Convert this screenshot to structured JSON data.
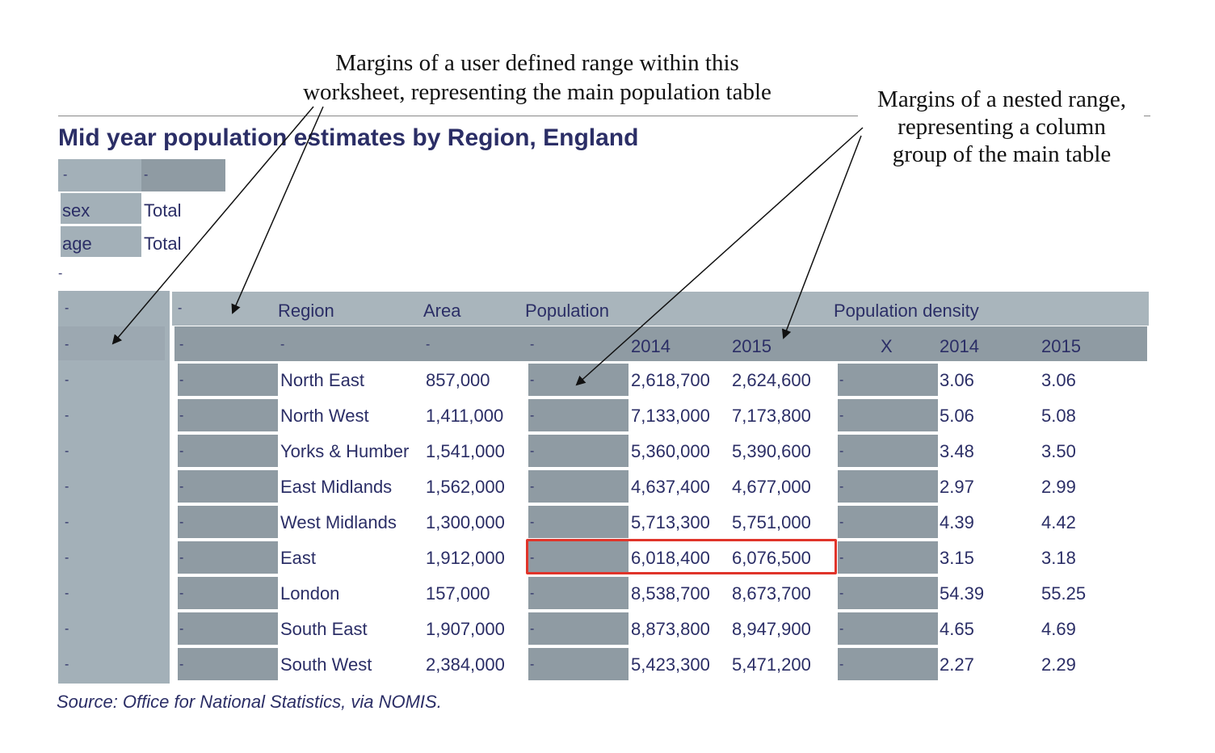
{
  "annotations": {
    "range_note_line1": "Margins of a user defined range within this",
    "range_note_line2": "worksheet, representing the main population table",
    "nested_note_line1": "Margins of a nested range,",
    "nested_note_line2": "representing a column",
    "nested_note_line3": "group of the main table"
  },
  "title": "Mid year population estimates by Region, England",
  "filters": {
    "top_left": "-",
    "top_right": "-",
    "rows": [
      {
        "label": "sex",
        "value": "Total"
      },
      {
        "label": "age",
        "value": "Total"
      }
    ],
    "separator": "-"
  },
  "table": {
    "dash": "-",
    "header1": {
      "region": "Region",
      "area": "Area",
      "population": "Population",
      "density": "Population density"
    },
    "header2": {
      "region": "-",
      "area": "-",
      "pop_2014": "2014",
      "pop_2015": "2015",
      "x": "X",
      "den_2014": "2014",
      "den_2015": "2015"
    },
    "rows": [
      {
        "region": "North East",
        "area": "857,000",
        "pop2014": "2,618,700",
        "pop2015": "2,624,600",
        "den2014": "3.06",
        "den2015": "3.06"
      },
      {
        "region": "North West",
        "area": "1,411,000",
        "pop2014": "7,133,000",
        "pop2015": "7,173,800",
        "den2014": "5.06",
        "den2015": "5.08"
      },
      {
        "region": "Yorks & Humber",
        "area": "1,541,000",
        "pop2014": "5,360,000",
        "pop2015": "5,390,600",
        "den2014": "3.48",
        "den2015": "3.50"
      },
      {
        "region": "East Midlands",
        "area": "1,562,000",
        "pop2014": "4,637,400",
        "pop2015": "4,677,000",
        "den2014": "2.97",
        "den2015": "2.99"
      },
      {
        "region": "West Midlands",
        "area": "1,300,000",
        "pop2014": "5,713,300",
        "pop2015": "5,751,000",
        "den2014": "4.39",
        "den2015": "4.42"
      },
      {
        "region": "East",
        "area": "1,912,000",
        "pop2014": "6,018,400",
        "pop2015": "6,076,500",
        "den2014": "3.15",
        "den2015": "3.18"
      },
      {
        "region": "London",
        "area": "157,000",
        "pop2014": "8,538,700",
        "pop2015": "8,673,700",
        "den2014": "54.39",
        "den2015": "55.25"
      },
      {
        "region": "South East",
        "area": "1,907,000",
        "pop2014": "8,873,800",
        "pop2015": "8,947,900",
        "den2014": "4.65",
        "den2015": "4.69"
      },
      {
        "region": "South West",
        "area": "2,384,000",
        "pop2014": "5,423,300",
        "pop2015": "5,471,200",
        "den2014": "2.27",
        "den2015": "2.29"
      }
    ],
    "highlight_color": "#e0342a"
  },
  "source": "Source: Office for National Statistics, via NOMIS."
}
